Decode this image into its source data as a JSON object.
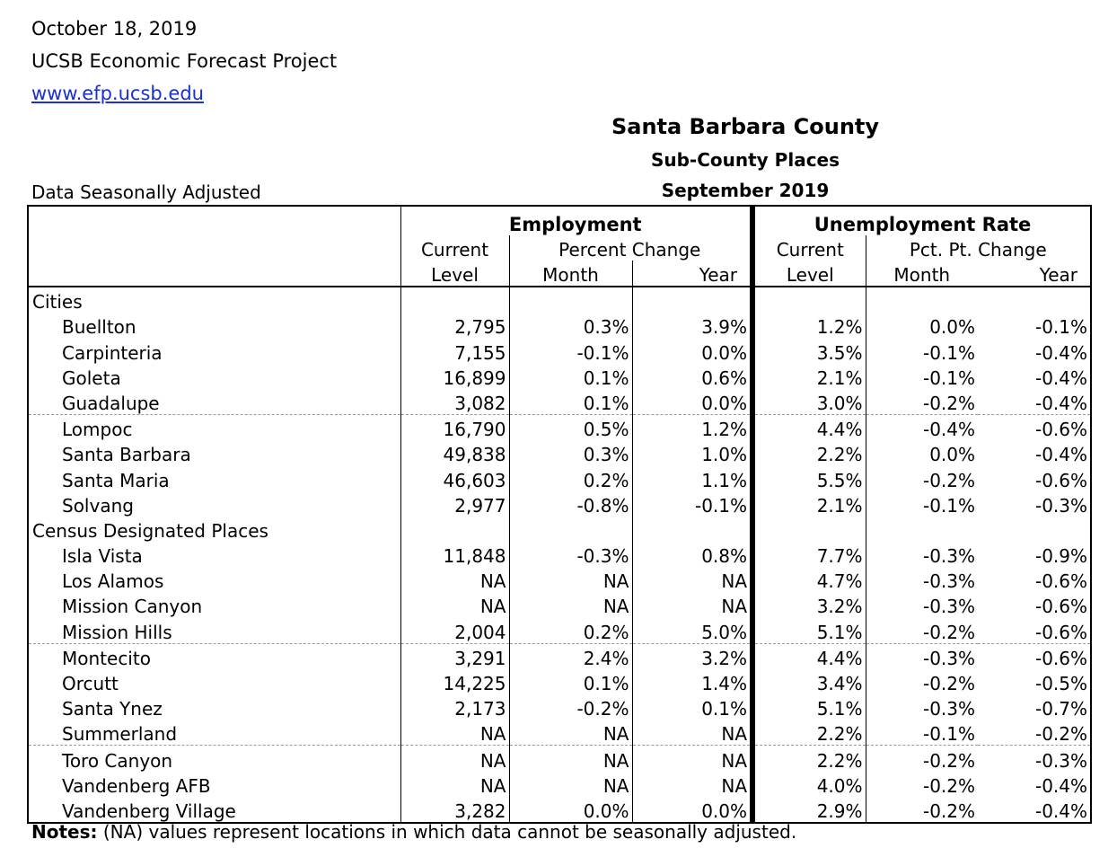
{
  "header": {
    "date": "October 18, 2019",
    "org": "UCSB Economic Forecast Project",
    "url": "www.efp.ucsb.edu"
  },
  "title": {
    "line1": "Santa Barbara County",
    "line2": "Sub-County Places",
    "line3": "September 2019"
  },
  "seasonal_note": "Data Seasonally Adjusted",
  "columns": {
    "employment": "Employment",
    "unemployment": "Unemployment Rate",
    "current": "Current",
    "level": "Level",
    "percent_change": "Percent Change",
    "pct_pt_change": "Pct. Pt. Change",
    "month": "Month",
    "year": "Year"
  },
  "sections": [
    {
      "label": "Cities",
      "rows": [
        {
          "name": "Buellton",
          "emp": "2,795",
          "emp_m": "0.3%",
          "emp_y": "3.9%",
          "ur": "1.2%",
          "ur_m": "0.0%",
          "ur_y": "-0.1%"
        },
        {
          "name": "Carpinteria",
          "emp": "7,155",
          "emp_m": "-0.1%",
          "emp_y": "0.0%",
          "ur": "3.5%",
          "ur_m": "-0.1%",
          "ur_y": "-0.4%"
        },
        {
          "name": "Goleta",
          "emp": "16,899",
          "emp_m": "0.1%",
          "emp_y": "0.6%",
          "ur": "2.1%",
          "ur_m": "-0.1%",
          "ur_y": "-0.4%"
        },
        {
          "name": "Guadalupe",
          "emp": "3,082",
          "emp_m": "0.1%",
          "emp_y": "0.0%",
          "ur": "3.0%",
          "ur_m": "-0.2%",
          "ur_y": "-0.4%"
        },
        {
          "name": "Lompoc",
          "emp": "16,790",
          "emp_m": "0.5%",
          "emp_y": "1.2%",
          "ur": "4.4%",
          "ur_m": "-0.4%",
          "ur_y": "-0.6%"
        },
        {
          "name": "Santa Barbara",
          "emp": "49,838",
          "emp_m": "0.3%",
          "emp_y": "1.0%",
          "ur": "2.2%",
          "ur_m": "0.0%",
          "ur_y": "-0.4%"
        },
        {
          "name": "Santa Maria",
          "emp": "46,603",
          "emp_m": "0.2%",
          "emp_y": "1.1%",
          "ur": "5.5%",
          "ur_m": "-0.2%",
          "ur_y": "-0.6%"
        },
        {
          "name": "Solvang",
          "emp": "2,977",
          "emp_m": "-0.8%",
          "emp_y": "-0.1%",
          "ur": "2.1%",
          "ur_m": "-0.1%",
          "ur_y": "-0.3%"
        }
      ]
    },
    {
      "label": "Census Designated Places",
      "rows": [
        {
          "name": "Isla Vista",
          "emp": "11,848",
          "emp_m": "-0.3%",
          "emp_y": "0.8%",
          "ur": "7.7%",
          "ur_m": "-0.3%",
          "ur_y": "-0.9%"
        },
        {
          "name": "Los Alamos",
          "emp": "NA",
          "emp_m": "NA",
          "emp_y": "NA",
          "ur": "4.7%",
          "ur_m": "-0.3%",
          "ur_y": "-0.6%"
        },
        {
          "name": "Mission Canyon",
          "emp": "NA",
          "emp_m": "NA",
          "emp_y": "NA",
          "ur": "3.2%",
          "ur_m": "-0.3%",
          "ur_y": "-0.6%"
        },
        {
          "name": "Mission Hills",
          "emp": "2,004",
          "emp_m": "0.2%",
          "emp_y": "5.0%",
          "ur": "5.1%",
          "ur_m": "-0.2%",
          "ur_y": "-0.6%"
        },
        {
          "name": "Montecito",
          "emp": "3,291",
          "emp_m": "2.4%",
          "emp_y": "3.2%",
          "ur": "4.4%",
          "ur_m": "-0.3%",
          "ur_y": "-0.6%"
        },
        {
          "name": "Orcutt",
          "emp": "14,225",
          "emp_m": "0.1%",
          "emp_y": "1.4%",
          "ur": "3.4%",
          "ur_m": "-0.2%",
          "ur_y": "-0.5%"
        },
        {
          "name": "Santa Ynez",
          "emp": "2,173",
          "emp_m": "-0.2%",
          "emp_y": "0.1%",
          "ur": "5.1%",
          "ur_m": "-0.3%",
          "ur_y": "-0.7%"
        },
        {
          "name": "Summerland",
          "emp": "NA",
          "emp_m": "NA",
          "emp_y": "NA",
          "ur": "2.2%",
          "ur_m": "-0.1%",
          "ur_y": "-0.2%"
        },
        {
          "name": "Toro Canyon",
          "emp": "NA",
          "emp_m": "NA",
          "emp_y": "NA",
          "ur": "2.2%",
          "ur_m": "-0.2%",
          "ur_y": "-0.3%"
        },
        {
          "name": "Vandenberg AFB",
          "emp": "NA",
          "emp_m": "NA",
          "emp_y": "NA",
          "ur": "4.0%",
          "ur_m": "-0.2%",
          "ur_y": "-0.4%"
        },
        {
          "name": "Vandenberg Village",
          "emp": "3,282",
          "emp_m": "0.0%",
          "emp_y": "0.0%",
          "ur": "2.9%",
          "ur_m": "-0.2%",
          "ur_y": "-0.4%"
        }
      ]
    }
  ],
  "notes": {
    "label": "Notes:",
    "text": " (NA) values represent locations in which data cannot be seasonally adjusted."
  }
}
